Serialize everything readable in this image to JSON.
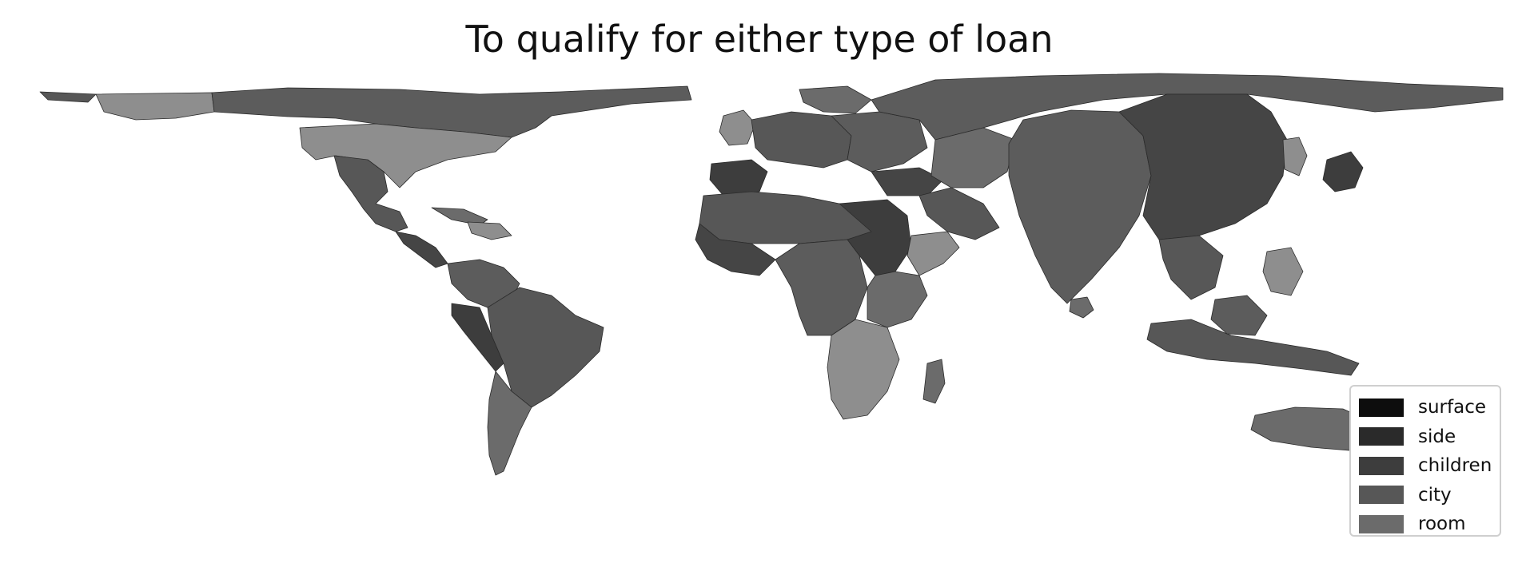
{
  "title": "To qualify for either type of loan",
  "legend": {
    "items": [
      {
        "label": "surface",
        "color": "#0d0d0d"
      },
      {
        "label": "side",
        "color": "#2a2a2a"
      },
      {
        "label": "children",
        "color": "#3d3d3d"
      },
      {
        "label": "city",
        "color": "#575757"
      },
      {
        "label": "room",
        "color": "#6b6b6b"
      }
    ]
  },
  "colors": {
    "land_default": "#5c5c5c",
    "land_light": "#8e8e8e",
    "land_dark": "#454545",
    "border": "#2b2b2b",
    "background": "#ffffff"
  }
}
